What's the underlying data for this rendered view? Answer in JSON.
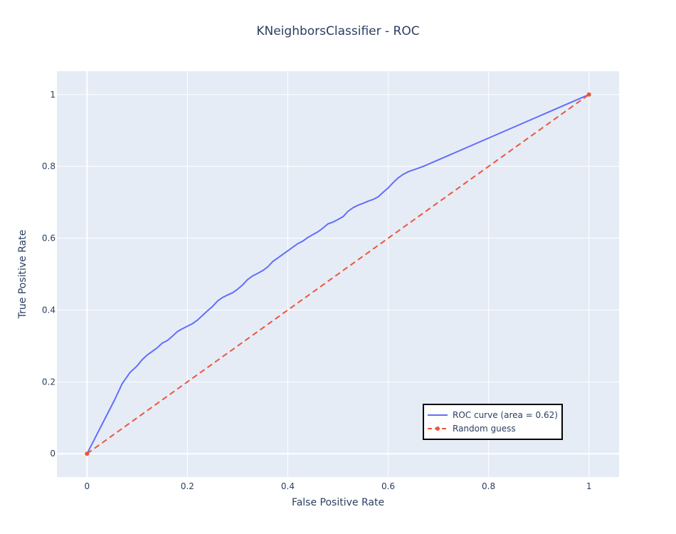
{
  "chart_data": {
    "type": "line",
    "title": "KNeighborsClassifier - ROC",
    "xlabel": "False Positive Rate",
    "ylabel": "True Positive Rate",
    "xlim": [
      -0.06,
      1.06
    ],
    "ylim": [
      -0.065,
      1.065
    ],
    "xticks": [
      0,
      0.2,
      0.4,
      0.6,
      0.8,
      1
    ],
    "xtick_labels": [
      "0",
      "0.2",
      "0.4",
      "0.6",
      "0.8",
      "1"
    ],
    "yticks": [
      0,
      0.2,
      0.4,
      0.6,
      0.8,
      1
    ],
    "ytick_labels": [
      "0",
      "0.2",
      "0.4",
      "0.6",
      "0.8",
      "1"
    ],
    "grid": true,
    "plot_background": "#e5ecf6",
    "legend_position": "bottom-right",
    "series": [
      {
        "name": "ROC curve (area = 0.62)",
        "color": "#636efa",
        "dash": "solid",
        "markers": false,
        "x": [
          0,
          0.055,
          0.06,
          0.065,
          0.07,
          0.075,
          0.08,
          0.085,
          0.09,
          0.095,
          0.1,
          0.11,
          0.12,
          0.13,
          0.14,
          0.15,
          0.16,
          0.17,
          0.18,
          0.19,
          0.2,
          0.21,
          0.22,
          0.23,
          0.24,
          0.25,
          0.26,
          0.27,
          0.28,
          0.29,
          0.3,
          0.31,
          0.32,
          0.33,
          0.34,
          0.35,
          0.36,
          0.37,
          0.38,
          0.39,
          0.4,
          0.41,
          0.42,
          0.43,
          0.44,
          0.45,
          0.46,
          0.47,
          0.48,
          0.49,
          0.5,
          0.51,
          0.52,
          0.53,
          0.54,
          0.55,
          0.56,
          0.57,
          0.58,
          0.59,
          0.6,
          0.61,
          0.62,
          0.63,
          0.64,
          0.65,
          0.66,
          0.67,
          1.0
        ],
        "y": [
          0,
          0.15,
          0.165,
          0.18,
          0.195,
          0.205,
          0.215,
          0.225,
          0.232,
          0.238,
          0.245,
          0.262,
          0.275,
          0.285,
          0.295,
          0.308,
          0.315,
          0.327,
          0.34,
          0.348,
          0.355,
          0.362,
          0.372,
          0.385,
          0.398,
          0.41,
          0.425,
          0.435,
          0.442,
          0.448,
          0.458,
          0.47,
          0.485,
          0.495,
          0.502,
          0.51,
          0.52,
          0.535,
          0.545,
          0.555,
          0.565,
          0.575,
          0.585,
          0.592,
          0.602,
          0.61,
          0.618,
          0.628,
          0.64,
          0.645,
          0.652,
          0.66,
          0.675,
          0.685,
          0.692,
          0.697,
          0.703,
          0.708,
          0.715,
          0.728,
          0.74,
          0.755,
          0.768,
          0.778,
          0.785,
          0.79,
          0.795,
          0.8,
          1.0
        ]
      },
      {
        "name": "Random guess",
        "color": "#ef553b",
        "dash": "dash",
        "markers": true,
        "x": [
          0,
          1
        ],
        "y": [
          0,
          1
        ]
      }
    ]
  }
}
